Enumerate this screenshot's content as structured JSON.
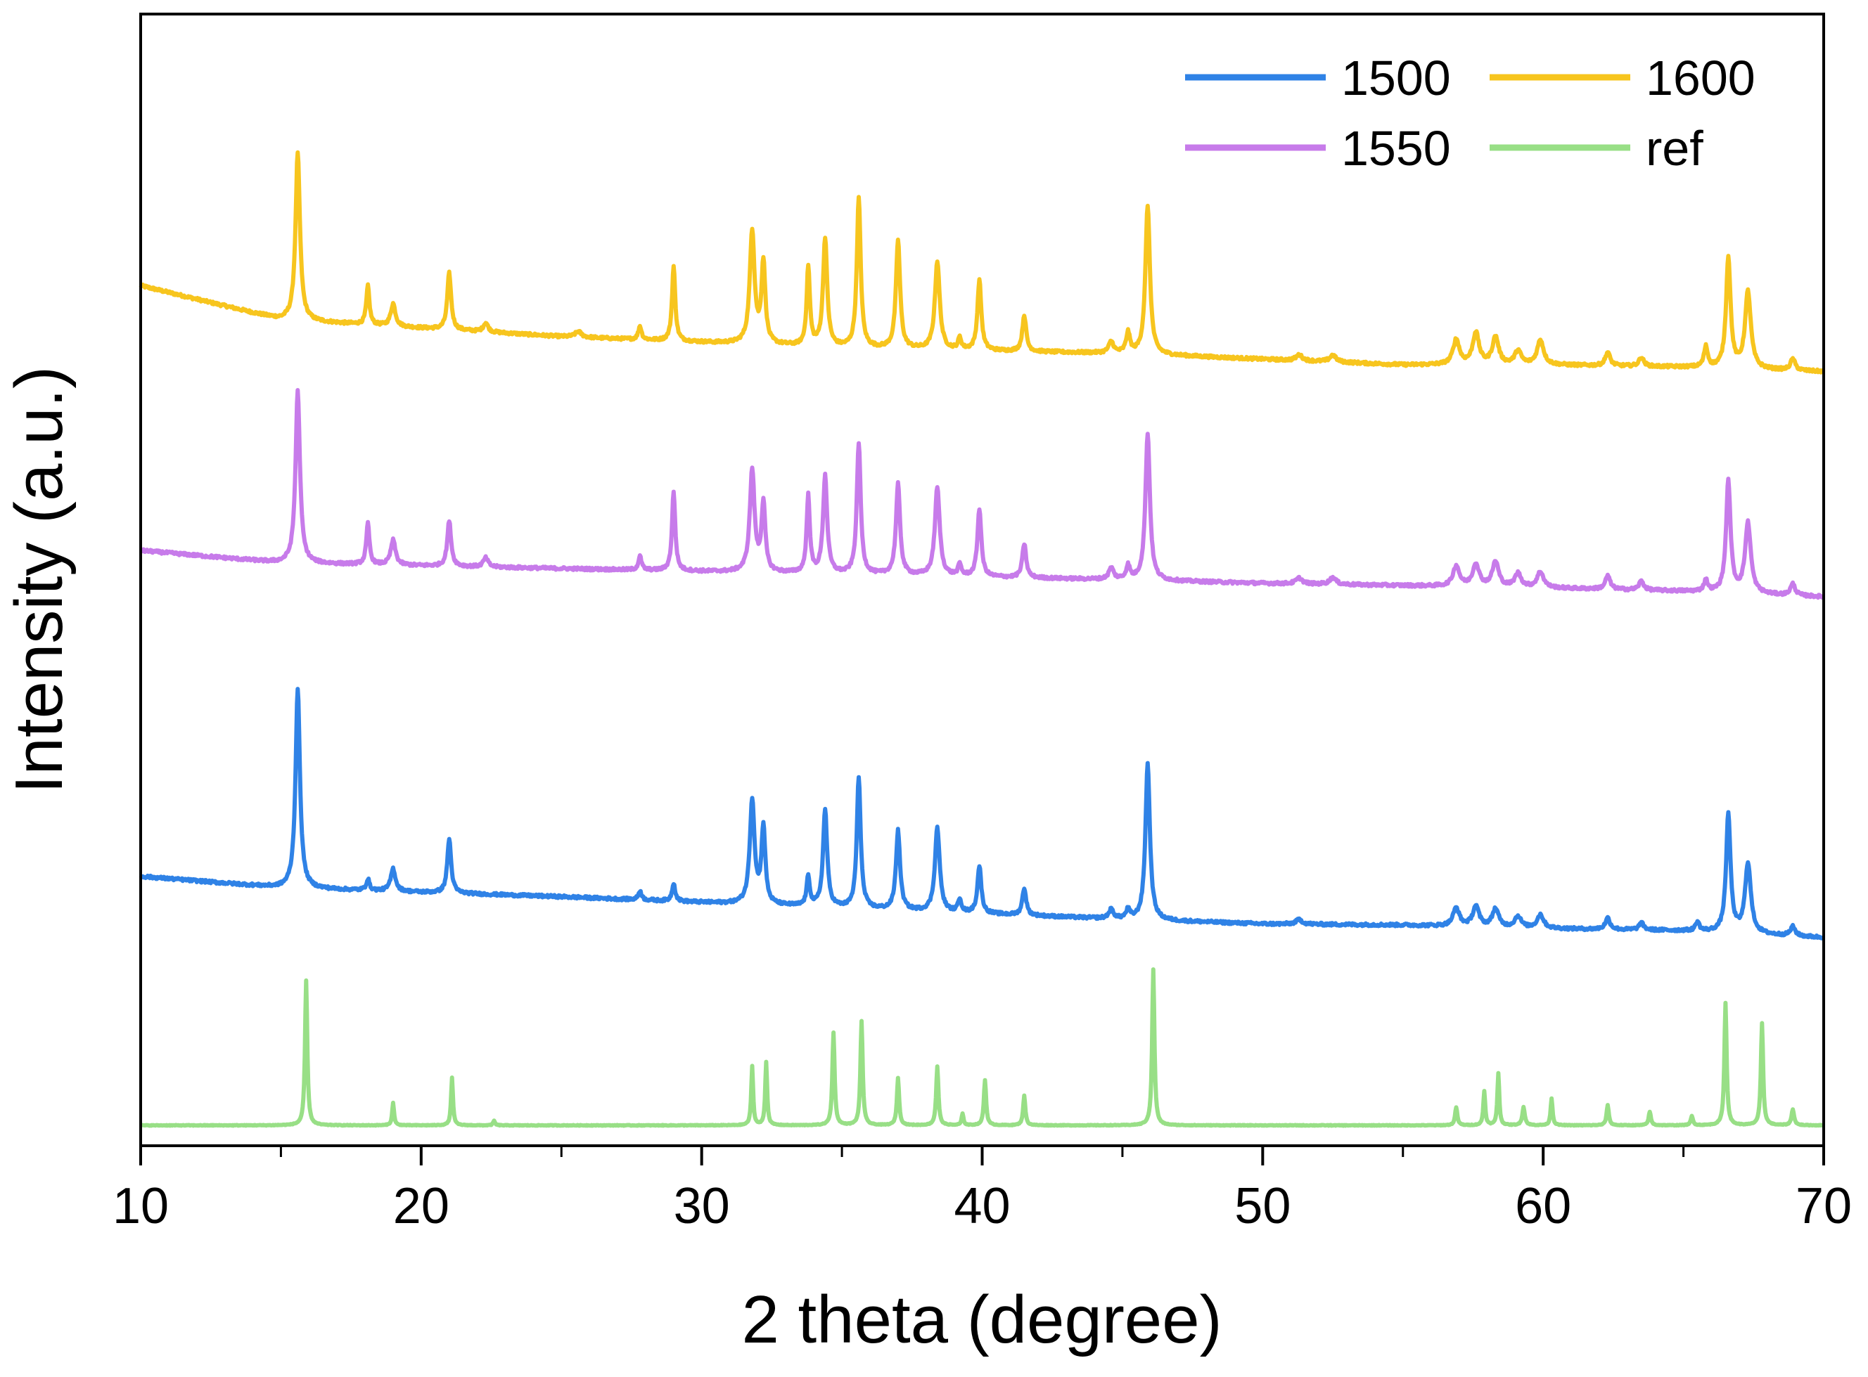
{
  "chart_data": {
    "type": "line",
    "title": "",
    "xlabel": "2 theta (degree)",
    "ylabel": "Intensity (a.u.)",
    "xlim": [
      10,
      70
    ],
    "xticks": [
      10,
      20,
      30,
      40,
      50,
      60,
      70
    ],
    "y_tick_labels_shown": false,
    "grid": false,
    "legend_position": "top-right",
    "legend_columns": 2,
    "legend_order": [
      "1500",
      "1600",
      "1550",
      "ref"
    ],
    "series": [
      {
        "name": "1600",
        "color": "#f7c51e",
        "baseline": [
          [
            10,
            0.76
          ],
          [
            15,
            0.73
          ],
          [
            25,
            0.715
          ],
          [
            35,
            0.705
          ],
          [
            45,
            0.7
          ],
          [
            50,
            0.695
          ],
          [
            55,
            0.69
          ],
          [
            60,
            0.69
          ],
          [
            65,
            0.688
          ],
          [
            70,
            0.684
          ]
        ],
        "peaks": [
          [
            15.6,
            0.148,
            0.14
          ],
          [
            18.1,
            0.034,
            0.1
          ],
          [
            19.0,
            0.02,
            0.15
          ],
          [
            21.0,
            0.05,
            0.12
          ],
          [
            22.3,
            0.008,
            0.15
          ],
          [
            25.6,
            0.005,
            0.2
          ],
          [
            27.8,
            0.012,
            0.1
          ],
          [
            29.0,
            0.066,
            0.1
          ],
          [
            31.8,
            0.1,
            0.15
          ],
          [
            32.2,
            0.072,
            0.12
          ],
          [
            33.8,
            0.07,
            0.1
          ],
          [
            34.4,
            0.096,
            0.13
          ],
          [
            35.6,
            0.132,
            0.12
          ],
          [
            37.0,
            0.096,
            0.13
          ],
          [
            38.4,
            0.078,
            0.15
          ],
          [
            39.2,
            0.01,
            0.1
          ],
          [
            39.9,
            0.062,
            0.12
          ],
          [
            41.5,
            0.032,
            0.12
          ],
          [
            44.6,
            0.01,
            0.15
          ],
          [
            45.2,
            0.018,
            0.12
          ],
          [
            45.9,
            0.132,
            0.14
          ],
          [
            51.3,
            0.005,
            0.2
          ],
          [
            52.5,
            0.006,
            0.2
          ],
          [
            56.9,
            0.022,
            0.2
          ],
          [
            57.6,
            0.028,
            0.2
          ],
          [
            58.3,
            0.024,
            0.2
          ],
          [
            59.1,
            0.012,
            0.2
          ],
          [
            59.9,
            0.022,
            0.2
          ],
          [
            62.3,
            0.012,
            0.15
          ],
          [
            63.5,
            0.008,
            0.15
          ],
          [
            65.8,
            0.018,
            0.12
          ],
          [
            66.6,
            0.098,
            0.14
          ],
          [
            67.3,
            0.068,
            0.18
          ],
          [
            68.9,
            0.01,
            0.15
          ]
        ]
      },
      {
        "name": "1550",
        "color": "#c77bea",
        "baseline": [
          [
            10,
            0.526
          ],
          [
            15,
            0.515
          ],
          [
            25,
            0.51
          ],
          [
            35,
            0.505
          ],
          [
            45,
            0.5
          ],
          [
            50,
            0.497
          ],
          [
            55,
            0.495
          ],
          [
            60,
            0.493
          ],
          [
            65,
            0.49
          ],
          [
            70,
            0.485
          ]
        ],
        "peaks": [
          [
            15.6,
            0.152,
            0.14
          ],
          [
            18.1,
            0.036,
            0.1
          ],
          [
            19.0,
            0.022,
            0.15
          ],
          [
            21.0,
            0.04,
            0.12
          ],
          [
            22.3,
            0.008,
            0.15
          ],
          [
            27.8,
            0.012,
            0.1
          ],
          [
            29.0,
            0.07,
            0.1
          ],
          [
            31.8,
            0.09,
            0.15
          ],
          [
            32.2,
            0.06,
            0.12
          ],
          [
            33.8,
            0.068,
            0.1
          ],
          [
            34.4,
            0.086,
            0.13
          ],
          [
            35.6,
            0.116,
            0.12
          ],
          [
            37.0,
            0.08,
            0.13
          ],
          [
            38.4,
            0.078,
            0.15
          ],
          [
            39.2,
            0.01,
            0.1
          ],
          [
            39.9,
            0.06,
            0.12
          ],
          [
            41.5,
            0.03,
            0.12
          ],
          [
            44.6,
            0.01,
            0.15
          ],
          [
            45.2,
            0.012,
            0.12
          ],
          [
            45.9,
            0.13,
            0.14
          ],
          [
            51.3,
            0.005,
            0.2
          ],
          [
            52.5,
            0.006,
            0.2
          ],
          [
            56.9,
            0.018,
            0.2
          ],
          [
            57.6,
            0.02,
            0.2
          ],
          [
            58.3,
            0.022,
            0.2
          ],
          [
            59.1,
            0.012,
            0.2
          ],
          [
            59.9,
            0.014,
            0.2
          ],
          [
            62.3,
            0.012,
            0.15
          ],
          [
            63.5,
            0.008,
            0.15
          ],
          [
            65.8,
            0.01,
            0.12
          ],
          [
            66.6,
            0.098,
            0.14
          ],
          [
            67.3,
            0.062,
            0.18
          ],
          [
            68.9,
            0.01,
            0.15
          ]
        ]
      },
      {
        "name": "1500",
        "color": "#2f82e6",
        "baseline": [
          [
            10,
            0.238
          ],
          [
            15,
            0.228
          ],
          [
            25,
            0.22
          ],
          [
            35,
            0.21
          ],
          [
            45,
            0.2
          ],
          [
            50,
            0.196
          ],
          [
            55,
            0.195
          ],
          [
            60,
            0.192
          ],
          [
            65,
            0.19
          ],
          [
            70,
            0.184
          ]
        ],
        "peaks": [
          [
            15.6,
            0.176,
            0.14
          ],
          [
            18.1,
            0.01,
            0.1
          ],
          [
            19.0,
            0.02,
            0.15
          ],
          [
            21.0,
            0.048,
            0.12
          ],
          [
            27.8,
            0.008,
            0.1
          ],
          [
            29.0,
            0.016,
            0.1
          ],
          [
            31.8,
            0.092,
            0.15
          ],
          [
            32.2,
            0.068,
            0.12
          ],
          [
            33.8,
            0.026,
            0.1
          ],
          [
            34.4,
            0.086,
            0.13
          ],
          [
            35.6,
            0.116,
            0.12
          ],
          [
            37.0,
            0.07,
            0.13
          ],
          [
            38.4,
            0.074,
            0.15
          ],
          [
            39.2,
            0.012,
            0.1
          ],
          [
            39.9,
            0.042,
            0.12
          ],
          [
            41.5,
            0.024,
            0.12
          ],
          [
            44.6,
            0.008,
            0.15
          ],
          [
            45.2,
            0.008,
            0.12
          ],
          [
            45.9,
            0.138,
            0.14
          ],
          [
            51.3,
            0.004,
            0.2
          ],
          [
            56.9,
            0.016,
            0.2
          ],
          [
            57.6,
            0.018,
            0.2
          ],
          [
            58.3,
            0.016,
            0.2
          ],
          [
            59.1,
            0.01,
            0.2
          ],
          [
            59.9,
            0.012,
            0.2
          ],
          [
            62.3,
            0.01,
            0.15
          ],
          [
            63.5,
            0.006,
            0.15
          ],
          [
            65.5,
            0.008,
            0.12
          ],
          [
            66.6,
            0.104,
            0.14
          ],
          [
            67.3,
            0.062,
            0.18
          ],
          [
            68.9,
            0.008,
            0.15
          ]
        ]
      },
      {
        "name": "ref",
        "color": "#98df86",
        "baseline": [
          [
            10,
            0.018
          ],
          [
            70,
            0.018
          ]
        ],
        "peaks": [
          [
            15.9,
            0.128,
            0.07
          ],
          [
            19.0,
            0.02,
            0.06
          ],
          [
            21.1,
            0.042,
            0.06
          ],
          [
            22.6,
            0.004,
            0.06
          ],
          [
            31.8,
            0.052,
            0.06
          ],
          [
            32.3,
            0.056,
            0.06
          ],
          [
            34.7,
            0.082,
            0.07
          ],
          [
            35.7,
            0.092,
            0.07
          ],
          [
            37.0,
            0.042,
            0.07
          ],
          [
            38.4,
            0.052,
            0.07
          ],
          [
            39.3,
            0.01,
            0.06
          ],
          [
            40.1,
            0.04,
            0.07
          ],
          [
            41.5,
            0.026,
            0.07
          ],
          [
            46.1,
            0.138,
            0.07
          ],
          [
            56.9,
            0.016,
            0.07
          ],
          [
            57.9,
            0.03,
            0.06
          ],
          [
            58.4,
            0.046,
            0.06
          ],
          [
            59.3,
            0.016,
            0.08
          ],
          [
            60.3,
            0.024,
            0.06
          ],
          [
            62.3,
            0.018,
            0.07
          ],
          [
            63.8,
            0.012,
            0.07
          ],
          [
            65.3,
            0.008,
            0.07
          ],
          [
            66.5,
            0.108,
            0.07
          ],
          [
            67.8,
            0.09,
            0.07
          ],
          [
            68.9,
            0.014,
            0.08
          ]
        ]
      }
    ]
  }
}
